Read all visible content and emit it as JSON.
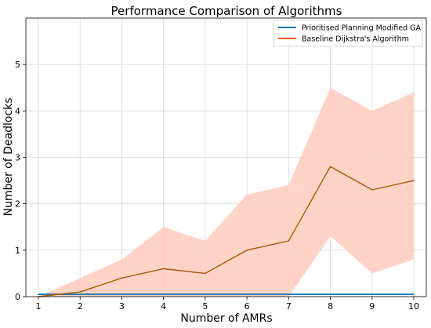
{
  "chart_data": {
    "type": "line",
    "title": "Performance Comparison of Algorithms",
    "xlabel": "Number of AMRs",
    "ylabel": "Number of Deadlocks",
    "x": [
      1,
      2,
      3,
      4,
      5,
      6,
      7,
      8,
      9,
      10
    ],
    "xlim": [
      0.7,
      10.3
    ],
    "ylim": [
      0,
      6
    ],
    "xticks": [
      "1",
      "2",
      "3",
      "4",
      "5",
      "6",
      "7",
      "8",
      "9",
      "10"
    ],
    "yticks": [
      "0",
      "1",
      "2",
      "3",
      "4",
      "5"
    ],
    "grid": true,
    "legend_position": "top-right",
    "series": [
      {
        "name": "Prioritised Planning Modified GA",
        "color": "#1f77b4",
        "values": [
          0.05,
          0.05,
          0.05,
          0.05,
          0.05,
          0.05,
          0.05,
          0.05,
          0.05,
          0.05
        ]
      },
      {
        "name": "Baseline Dijkstra's Algorithm",
        "color": "#ff5722",
        "line_color": "#a65a00",
        "band_color": "#ffccbc",
        "values": [
          0.0,
          0.1,
          0.4,
          0.6,
          0.5,
          1.0,
          1.2,
          2.8,
          2.3,
          2.5
        ],
        "band_lower": [
          0.0,
          0.0,
          0.0,
          0.0,
          0.0,
          0.0,
          0.0,
          1.3,
          0.5,
          0.8
        ],
        "band_upper": [
          0.0,
          0.4,
          0.8,
          1.5,
          1.2,
          2.2,
          2.4,
          4.5,
          4.0,
          4.4
        ]
      }
    ]
  }
}
